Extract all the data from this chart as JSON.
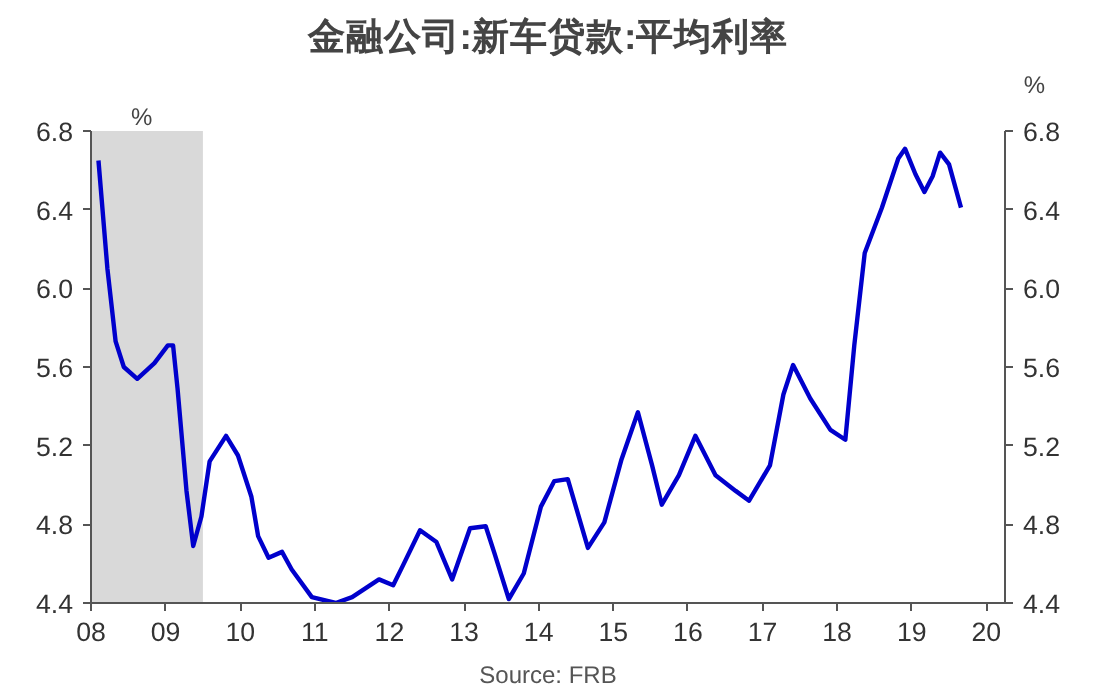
{
  "chart_data": {
    "type": "line",
    "title": "金融公司:新车贷款:平均利率",
    "ylabel": "%",
    "y2label": "%",
    "annotations": [
      "Source: FRB"
    ],
    "series": [
      {
        "color": "#0000cc",
        "x": [
          2008.1,
          2008.22,
          2008.33,
          2008.44,
          2008.62,
          2008.85,
          2009.03,
          2009.1,
          2009.16,
          2009.28,
          2009.37,
          2009.48,
          2009.59,
          2009.81,
          2009.97,
          2010.15,
          2010.24,
          2010.38,
          2010.56,
          2010.69,
          2010.96,
          2011.28,
          2011.5,
          2011.86,
          2012.05,
          2012.18,
          2012.41,
          2012.63,
          2012.84,
          2013.08,
          2013.29,
          2013.41,
          2013.6,
          2013.8,
          2014.03,
          2014.21,
          2014.39,
          2014.66,
          2014.88,
          2015.11,
          2015.33,
          2015.52,
          2015.65,
          2015.88,
          2016.1,
          2016.37,
          2016.64,
          2016.82,
          2017.1,
          2017.28,
          2017.41,
          2017.64,
          2017.91,
          2018.11,
          2018.23,
          2018.37,
          2018.6,
          2018.82,
          2018.91,
          2019.05,
          2019.17,
          2019.28,
          2019.38,
          2019.5,
          2019.66
        ],
        "values": [
          6.65,
          6.1,
          5.73,
          5.6,
          5.54,
          5.62,
          5.71,
          5.71,
          5.49,
          4.97,
          4.69,
          4.84,
          5.12,
          5.25,
          5.15,
          4.94,
          4.74,
          4.63,
          4.66,
          4.57,
          4.43,
          4.4,
          4.43,
          4.52,
          4.49,
          4.59,
          4.77,
          4.71,
          4.52,
          4.78,
          4.79,
          4.65,
          4.42,
          4.55,
          4.89,
          5.02,
          5.03,
          4.68,
          4.81,
          5.13,
          5.37,
          5.1,
          4.9,
          5.05,
          5.25,
          5.05,
          4.97,
          4.92,
          5.1,
          5.46,
          5.61,
          5.44,
          5.28,
          5.23,
          5.71,
          6.18,
          6.41,
          6.66,
          6.71,
          6.58,
          6.49,
          6.57,
          6.69,
          6.63,
          6.41
        ]
      }
    ],
    "xlim": [
      2008,
      2020.25
    ],
    "xticks": [
      {
        "value": 2008,
        "label": "08"
      },
      {
        "value": 2009,
        "label": "09"
      },
      {
        "value": 2010,
        "label": "10"
      },
      {
        "value": 2011,
        "label": "11"
      },
      {
        "value": 2012,
        "label": "12"
      },
      {
        "value": 2013,
        "label": "13"
      },
      {
        "value": 2014,
        "label": "14"
      },
      {
        "value": 2015,
        "label": "15"
      },
      {
        "value": 2016,
        "label": "16"
      },
      {
        "value": 2017,
        "label": "17"
      },
      {
        "value": 2018,
        "label": "18"
      },
      {
        "value": 2019,
        "label": "19"
      },
      {
        "value": 2020,
        "label": "20"
      }
    ],
    "ylim": [
      4.4,
      6.8
    ],
    "yticks": [
      4.4,
      4.8,
      5.2,
      5.6,
      {
        "value": 6,
        "label": "6.0"
      },
      6.4,
      6.8
    ],
    "y2lim": [
      4.4,
      6.8
    ],
    "y2ticks": [
      4.4,
      4.8,
      5.2,
      5.6,
      {
        "value": 6,
        "label": "6.0"
      },
      6.4,
      6.8
    ],
    "bands": [
      {
        "axis": "x",
        "from": 2008,
        "to": 2009.5,
        "color": "#d9d9d9"
      }
    ],
    "grid": false
  }
}
